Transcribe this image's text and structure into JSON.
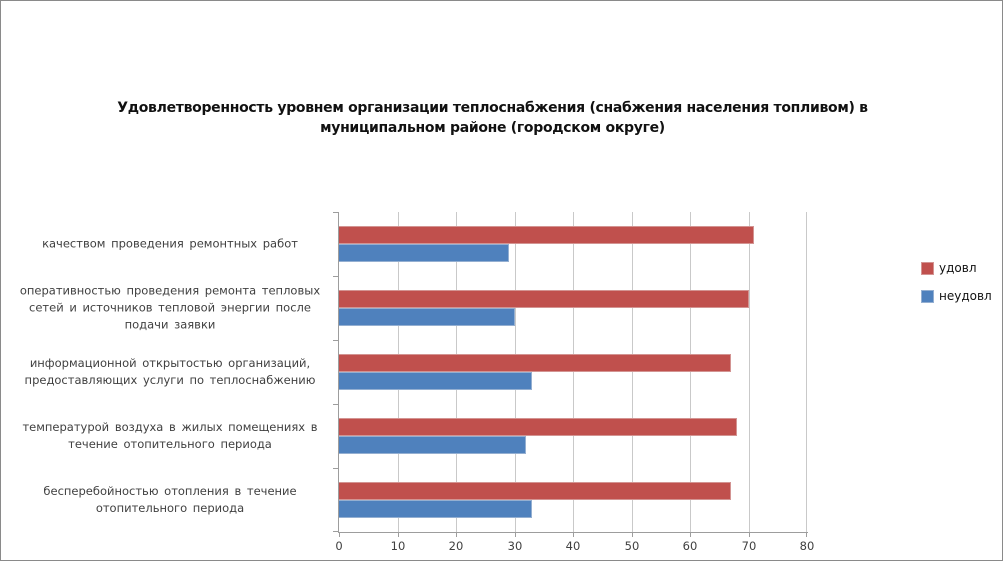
{
  "window": {
    "background": "#ffffff",
    "border_color": "#8a8a8a"
  },
  "chart_data": {
    "type": "bar",
    "orientation": "horizontal",
    "title": "Удовлетворенность уровнем организации теплоснабжения (снабжения населения топливом) в муниципальном районе (городском округе)",
    "title_lines": [
      "Удовлетворенность уровнем организации теплоснабжения (снабжения населения топливом) в",
      "муниципальном районе (городском округе)"
    ],
    "categories": [
      "качеством проведения ремонтных работ",
      "оперативностью проведения ремонта тепловых сетей и источников тепловой энергии после подачи заявки",
      "информационной открытостью организаций, предоставляющих услуги по теплоснабжению",
      "температурой воздуха в жилых помещениях в течение отопительного периода",
      "бесперебойностью отопления в течение отопительного периода"
    ],
    "category_lines": [
      [
        "качеством проведения ремонтных работ"
      ],
      [
        "оперативностью проведения ремонта тепловых",
        "сетей и источников тепловой энергии после",
        "подачи заявки"
      ],
      [
        "информационной открытостью организаций,",
        "предоставляющих услуги по теплоснабжению"
      ],
      [
        "температурой воздуха в жилых помещениях в",
        "течение отопительного периода"
      ],
      [
        "бесперебойностью отопления в течение",
        "отопительного периода"
      ]
    ],
    "series": [
      {
        "name": "удовл",
        "color": "#C0504D",
        "border_color": "#D39492",
        "values": [
          71,
          70,
          67,
          68,
          67
        ]
      },
      {
        "name": "неудовл",
        "color": "#4F81BD",
        "border_color": "#94AFD1",
        "values": [
          29,
          30,
          33,
          32,
          33
        ]
      }
    ],
    "xlim": [
      0,
      80
    ],
    "xticks": [
      0,
      10,
      20,
      30,
      40,
      50,
      60,
      70,
      80
    ],
    "grid": true,
    "legend_position": "right",
    "axis_color": "#9d9d9d",
    "gridline_color": "#c9c9c9",
    "text_color": "#404040"
  }
}
